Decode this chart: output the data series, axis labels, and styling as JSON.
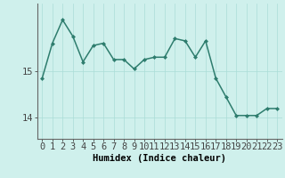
{
  "x": [
    0,
    1,
    2,
    3,
    4,
    5,
    6,
    7,
    8,
    9,
    10,
    11,
    12,
    13,
    14,
    15,
    16,
    17,
    18,
    19,
    20,
    21,
    22,
    23
  ],
  "y": [
    14.85,
    15.6,
    16.1,
    15.75,
    15.2,
    15.55,
    15.6,
    15.25,
    15.25,
    15.05,
    15.25,
    15.3,
    15.3,
    15.7,
    15.65,
    15.3,
    15.65,
    14.85,
    14.45,
    14.05,
    14.05,
    14.05,
    14.2,
    14.2
  ],
  "line_color": "#2e7d6e",
  "marker": "D",
  "marker_size": 2.0,
  "linewidth": 1.1,
  "background_color": "#cff0ec",
  "grid_color": "#aaddd7",
  "xlabel": "Humidex (Indice chaleur)",
  "ytick_labels": [
    "14",
    "15"
  ],
  "ytick_values": [
    14,
    15
  ],
  "ylim": [
    13.55,
    16.45
  ],
  "xlim": [
    -0.5,
    23.5
  ],
  "xlabel_fontsize": 7.5,
  "tick_fontsize": 7.5
}
